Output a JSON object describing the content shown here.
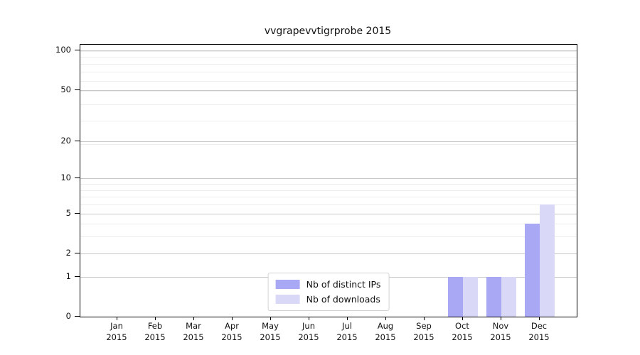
{
  "title": "vvgrapevvtigrprobe 2015",
  "chart_data": {
    "type": "bar",
    "title": "vvgrapevvtigrprobe 2015",
    "categories": [
      "Jan",
      "Feb",
      "Mar",
      "Apr",
      "May",
      "Jun",
      "Jul",
      "Aug",
      "Sep",
      "Oct",
      "Nov",
      "Dec"
    ],
    "year": "2015",
    "series": [
      {
        "name": "Nb of distinct IPs",
        "color": "#a8a8f4",
        "values": [
          0,
          0,
          0,
          0,
          0,
          0,
          0,
          0,
          0,
          1,
          1,
          4
        ]
      },
      {
        "name": "Nb of downloads",
        "color": "#d9d9f7",
        "values": [
          0,
          0,
          0,
          0,
          0,
          0,
          0,
          0,
          0,
          1,
          1,
          6
        ]
      }
    ],
    "xlabel": "",
    "ylabel": "",
    "yscale": "log1p",
    "yticks": [
      0,
      1,
      2,
      5,
      10,
      20,
      50,
      100
    ],
    "ylim": [
      0,
      110
    ],
    "grid": "horizontal",
    "legend_position": "bottom-center"
  },
  "colors": {
    "bar_distinct_ips": "#a8a8f4",
    "bar_downloads": "#d9d9f7",
    "grid_major": "#c8c8c8",
    "grid_minor": "#ededed",
    "frame": "#000000",
    "background": "#ffffff"
  }
}
